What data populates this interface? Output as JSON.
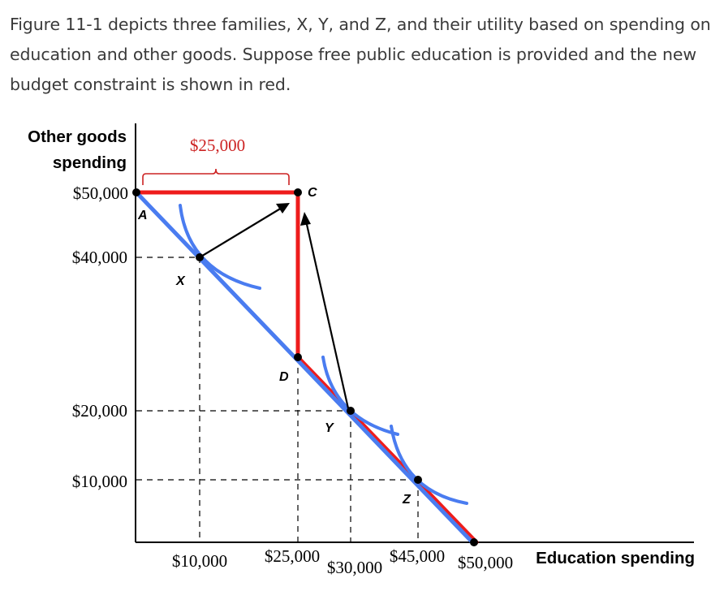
{
  "caption": "Figure 11-1 depicts three families, X, Y, and Z, and their utility based on spending on education and other goods. Suppose free public education is provided and the new budget constraint is shown in red.",
  "axes": {
    "y_title_line1": "Other goods",
    "y_title_line2": "spending",
    "x_title": "Education spending"
  },
  "y_ticks": [
    "$50,000",
    "$40,000",
    "$20,000",
    "$10,000"
  ],
  "x_ticks": [
    "$10,000",
    "$25,000",
    "$30,000",
    "$45,000",
    "$50,000"
  ],
  "bracket_label": "$25,000",
  "points": {
    "A": "A",
    "C": "C",
    "D": "D",
    "X": "X",
    "Y": "Y",
    "Z": "Z"
  },
  "colors": {
    "budget_original": "#4a7cf0",
    "budget_new": "#ee1c1c",
    "bracket": "#cc2222",
    "text": "#000000"
  }
}
